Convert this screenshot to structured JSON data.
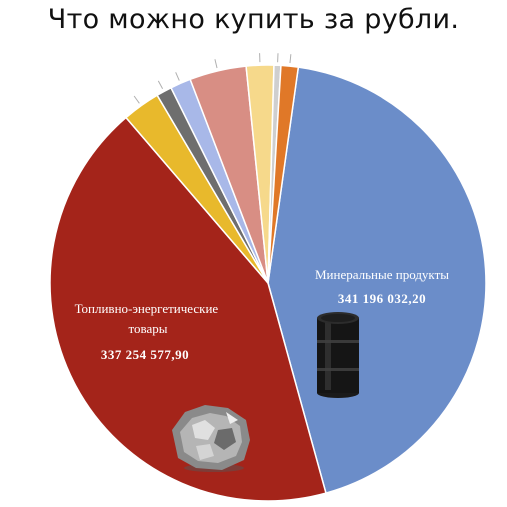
{
  "chart_data": {
    "type": "pie",
    "title": "Что можно купить за рубли.",
    "start_angle_deg": 8,
    "direction": "clockwise",
    "slices": [
      {
        "label": "Минеральные продукты",
        "value_text": "341 196 032,20",
        "value": 341196032.2,
        "color": "#6B8DC9"
      },
      {
        "label": "Топливно-энергетические товары",
        "value_text": "337 254 577,90",
        "value": 337254577.9,
        "color": "#A4241A"
      },
      {
        "label": "",
        "value_text": "",
        "value": 22000000,
        "color": "#E8B92C"
      },
      {
        "label": "",
        "value_text": "",
        "value": 9000000,
        "color": "#6E6E6E"
      },
      {
        "label": "",
        "value_text": "",
        "value": 12000000,
        "color": "#A8B8E8"
      },
      {
        "label": "",
        "value_text": "",
        "value": 33000000,
        "color": "#D88E84"
      },
      {
        "label": "",
        "value_text": "",
        "value": 16000000,
        "color": "#F6D98B"
      },
      {
        "label": "",
        "value_text": "",
        "value": 4000000,
        "color": "#CFCFCF"
      },
      {
        "label": "",
        "value_text": "",
        "value": 10000000,
        "color": "#E07828"
      }
    ]
  }
}
